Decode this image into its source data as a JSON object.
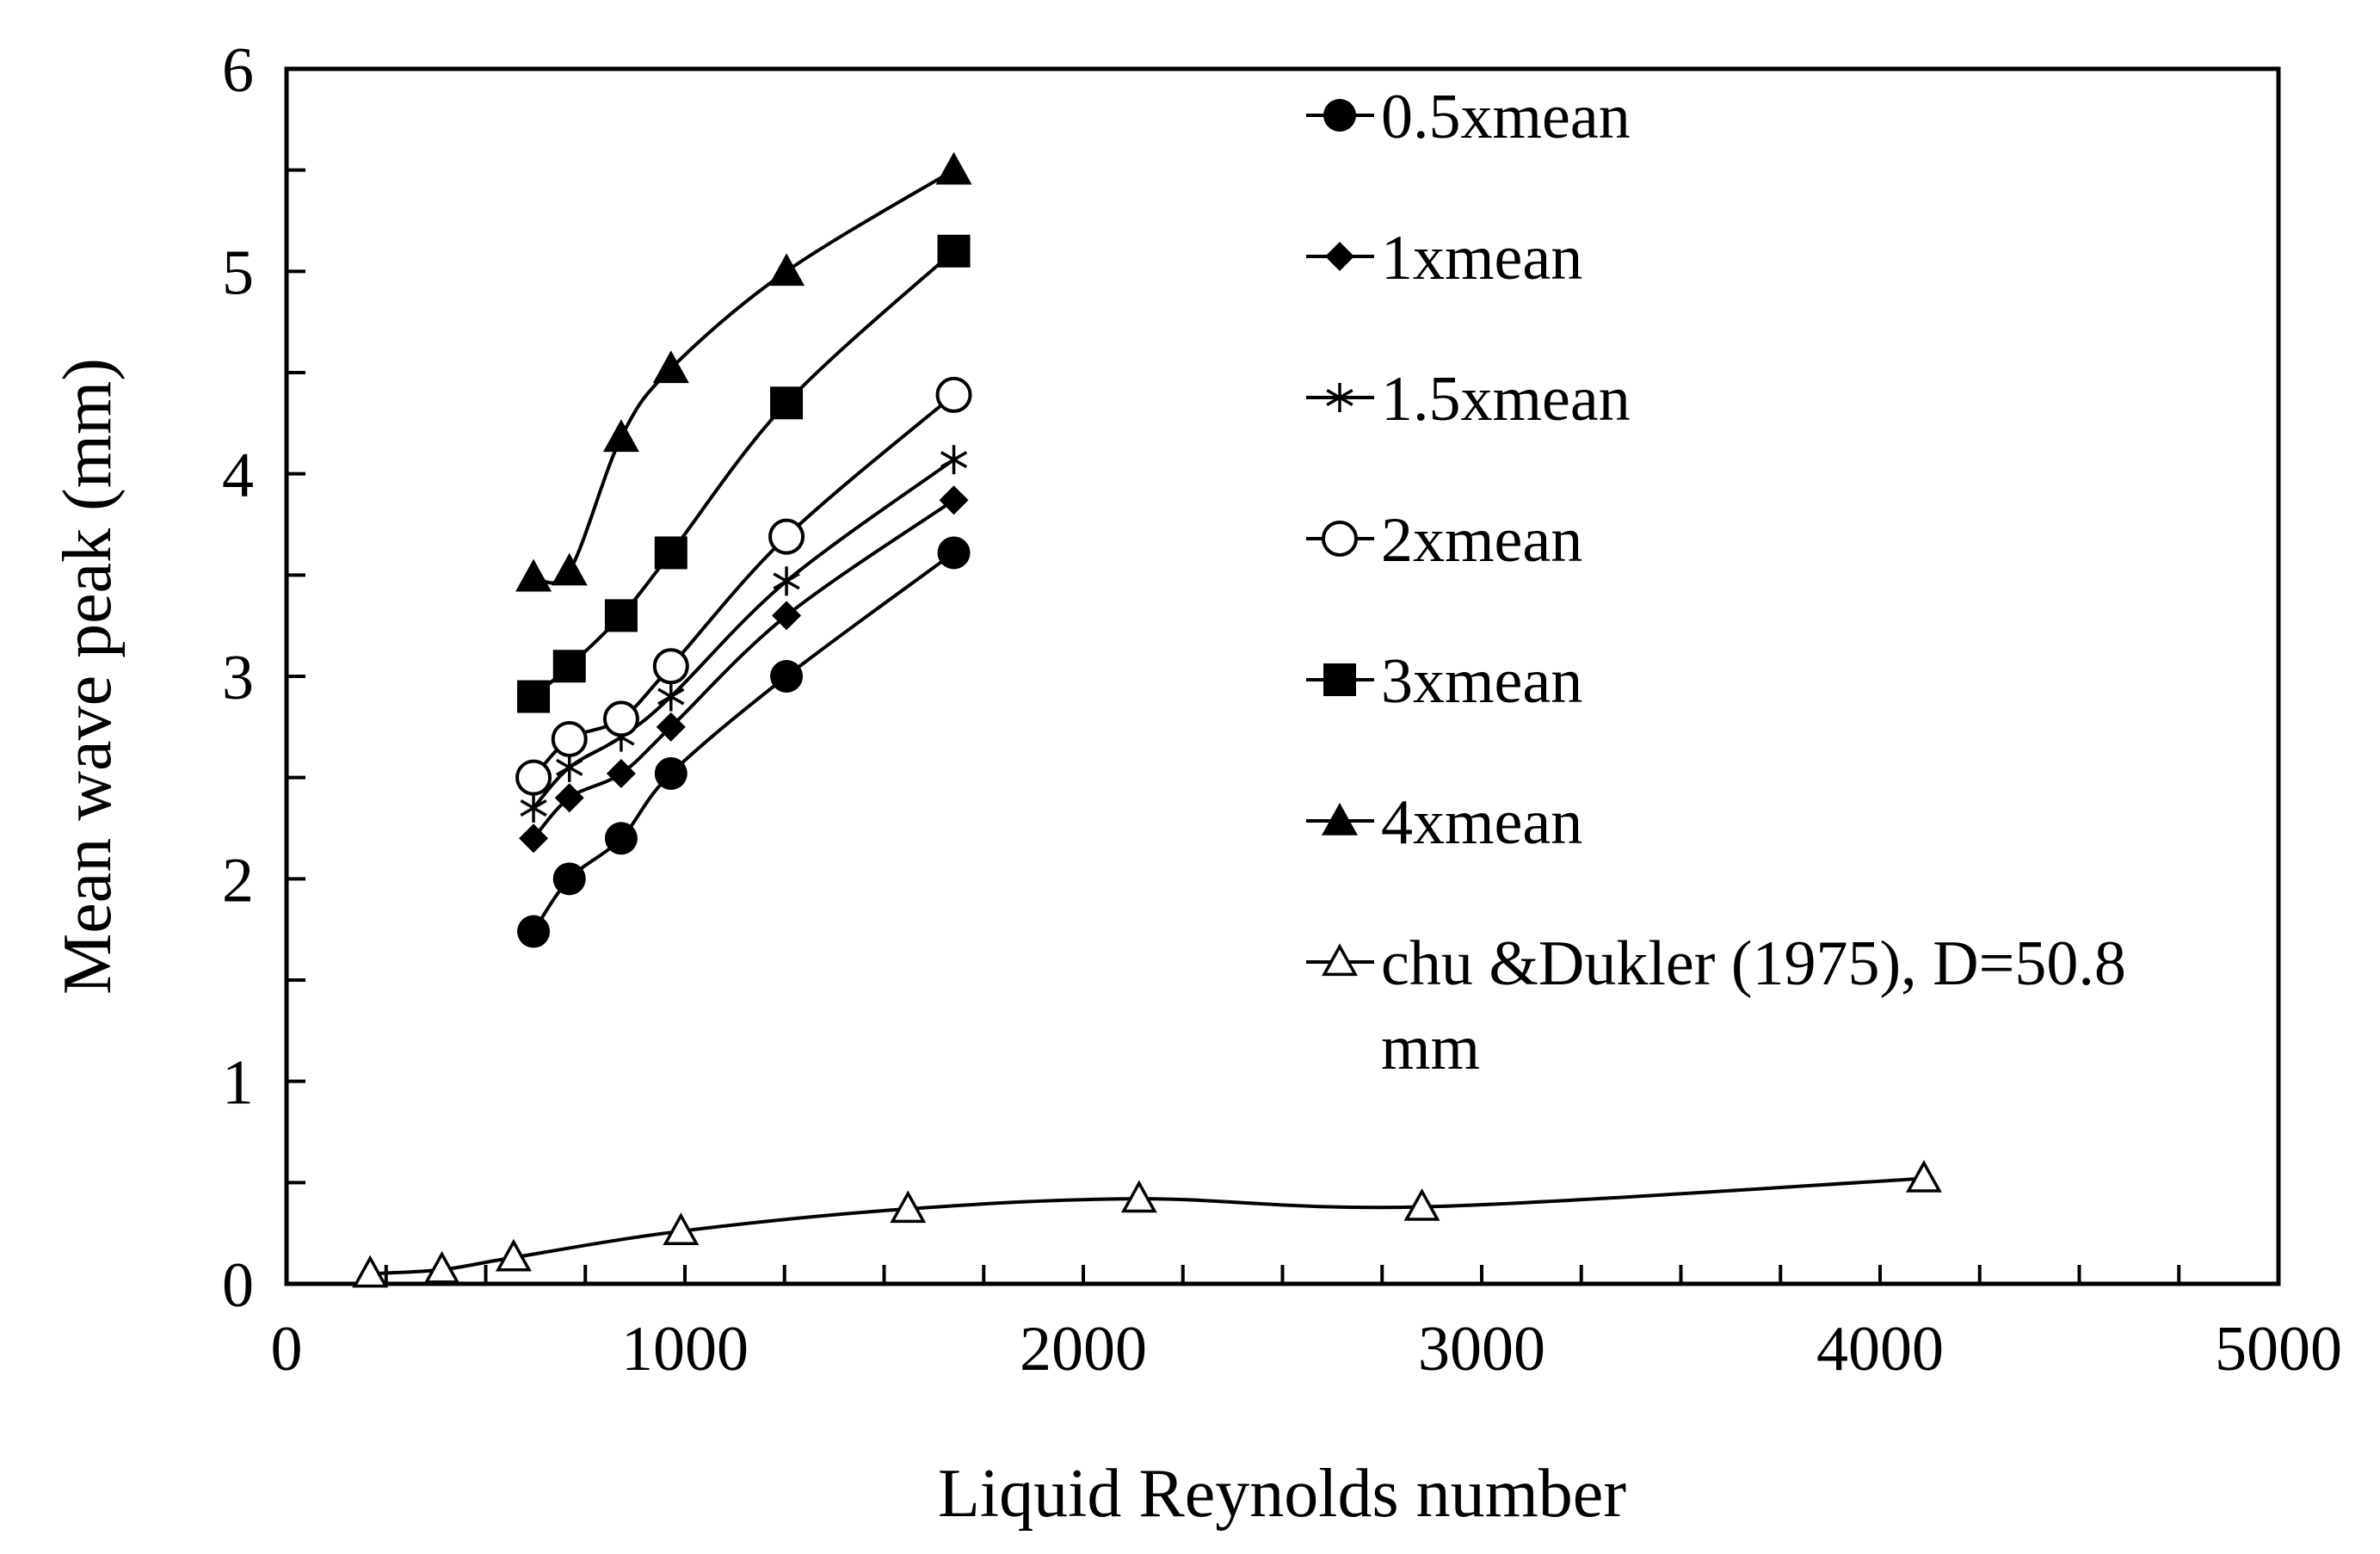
{
  "chart_data": {
    "type": "scatter",
    "title": "",
    "xlabel": "Liquid Reynolds number",
    "ylabel": "Mean wave peak (mm)",
    "xlim": [
      0,
      5000
    ],
    "ylim": [
      0,
      6
    ],
    "x_major_ticks": [
      0,
      1000,
      2000,
      3000,
      4000,
      5000
    ],
    "x_minor_step": 250,
    "y_major_ticks": [
      0,
      1,
      2,
      3,
      4,
      5,
      6
    ],
    "y_minor_step": 0.5,
    "grid": false,
    "legend_position": "top-right inside",
    "series": [
      {
        "name": "0.5xmean",
        "marker": "filled-circle",
        "x": [
          620,
          710,
          840,
          965,
          1255,
          1675
        ],
        "y": [
          1.74,
          2.0,
          2.2,
          2.52,
          3.0,
          3.61
        ]
      },
      {
        "name": "1xmean",
        "marker": "filled-diamond",
        "x": [
          620,
          710,
          840,
          965,
          1255,
          1675
        ],
        "y": [
          2.2,
          2.4,
          2.52,
          2.75,
          3.3,
          3.87
        ]
      },
      {
        "name": "1.5xmean",
        "marker": "asterisk",
        "x": [
          620,
          710,
          840,
          965,
          1255,
          1675
        ],
        "y": [
          2.35,
          2.55,
          2.7,
          2.9,
          3.47,
          4.07
        ]
      },
      {
        "name": "2xmean",
        "marker": "open-circle",
        "x": [
          620,
          710,
          840,
          965,
          1255,
          1675
        ],
        "y": [
          2.5,
          2.69,
          2.79,
          3.05,
          3.69,
          4.39
        ]
      },
      {
        "name": "3xmean",
        "marker": "filled-square",
        "x": [
          620,
          710,
          840,
          965,
          1255,
          1675
        ],
        "y": [
          2.9,
          3.05,
          3.3,
          3.61,
          4.35,
          5.1
        ]
      },
      {
        "name": "4xmean",
        "marker": "filled-triangle",
        "x": [
          620,
          710,
          840,
          965,
          1255,
          1675
        ],
        "y": [
          3.49,
          3.52,
          4.18,
          4.52,
          5.0,
          5.5
        ]
      },
      {
        "name": "chu &Dukler (1975), D=50.8 mm",
        "marker": "open-triangle",
        "x": [
          210,
          390,
          570,
          990,
          1560,
          2140,
          2850,
          4110
        ],
        "y": [
          0.05,
          0.07,
          0.13,
          0.26,
          0.37,
          0.42,
          0.38,
          0.52
        ]
      }
    ]
  }
}
